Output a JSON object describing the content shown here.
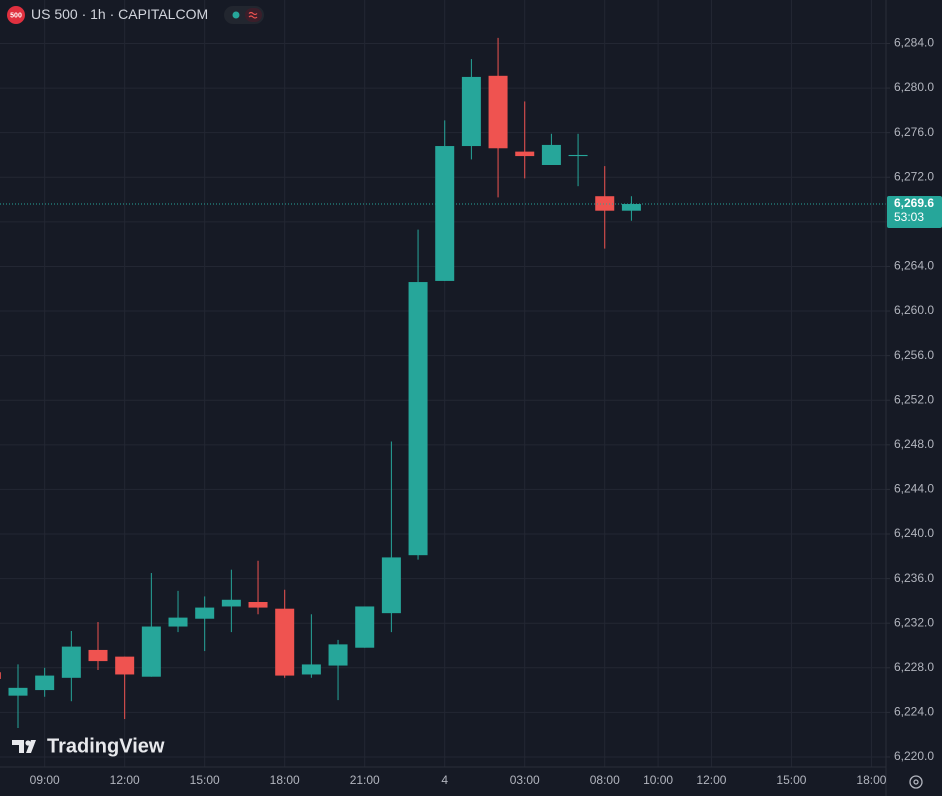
{
  "chart_data": {
    "type": "candlestick",
    "title": "US 500 · 1h · CAPITALCOM",
    "badge": "500",
    "watermark": "TradingView",
    "categories": [
      null,
      null,
      "09:00",
      null,
      null,
      "12:00",
      null,
      null,
      "15:00",
      null,
      null,
      "18:00",
      null,
      null,
      "21:00",
      null,
      null,
      "4",
      null,
      null,
      "03:00",
      null,
      null,
      "08:00",
      null,
      "10:00",
      null,
      "12:00",
      null,
      null,
      "15:00",
      null,
      null,
      "18:00"
    ],
    "open": [
      6227.6,
      6225.5,
      6226.0,
      6227.1,
      6229.6,
      6229.0,
      6227.2,
      6231.7,
      6232.4,
      6233.5,
      6233.9,
      6233.3,
      6227.4,
      6228.2,
      6229.8,
      6232.9,
      6238.1,
      6262.7,
      6274.8,
      6281.1,
      6274.3,
      6273.1,
      6273.9,
      6270.3,
      6269.0,
      null,
      null,
      null,
      null,
      null,
      null,
      null,
      null,
      null
    ],
    "high": [
      6227.8,
      6228.3,
      6228.0,
      6231.3,
      6232.1,
      6229.0,
      6236.5,
      6234.9,
      6234.4,
      6236.8,
      6237.6,
      6235.0,
      6232.8,
      6230.5,
      6233.5,
      6248.3,
      6267.3,
      6277.1,
      6282.6,
      6284.5,
      6278.8,
      6275.9,
      6275.9,
      6273.0,
      6270.3,
      null,
      null,
      null,
      null,
      null,
      null,
      null,
      null,
      null
    ],
    "low": [
      6226.8,
      6222.6,
      6225.4,
      6225.0,
      6227.8,
      6223.4,
      6227.2,
      6231.2,
      6229.5,
      6231.2,
      6232.8,
      6227.1,
      6227.1,
      6225.1,
      6229.8,
      6231.2,
      6237.7,
      6262.7,
      6273.6,
      6270.2,
      6271.9,
      6273.1,
      6271.2,
      6265.6,
      6268.1,
      null,
      null,
      null,
      null,
      null,
      null,
      null,
      null,
      null
    ],
    "close": [
      6227.0,
      6226.2,
      6227.3,
      6229.9,
      6228.6,
      6227.4,
      6231.7,
      6232.5,
      6233.4,
      6234.1,
      6233.4,
      6227.3,
      6228.3,
      6230.1,
      6233.5,
      6237.9,
      6262.6,
      6274.8,
      6281.0,
      6274.6,
      6273.9,
      6274.9,
      6274.0,
      6269.0,
      6269.6,
      null,
      null,
      null,
      null,
      null,
      null,
      null,
      null,
      null
    ],
    "up_color": "#26a69a",
    "down_color": "#ef5350",
    "ylim": [
      6219.1,
      6287.9
    ],
    "yticks": [
      {
        "value": 6220,
        "label": "6,220.0"
      },
      {
        "value": 6224,
        "label": "6,224.0"
      },
      {
        "value": 6228,
        "label": "6,228.0"
      },
      {
        "value": 6232,
        "label": "6,232.0"
      },
      {
        "value": 6236,
        "label": "6,236.0"
      },
      {
        "value": 6240,
        "label": "6,240.0"
      },
      {
        "value": 6244,
        "label": "6,244.0"
      },
      {
        "value": 6248,
        "label": "6,248.0"
      },
      {
        "value": 6252,
        "label": "6,252.0"
      },
      {
        "value": 6256,
        "label": "6,256.0"
      },
      {
        "value": 6260,
        "label": "6,260.0"
      },
      {
        "value": 6264,
        "label": "6,264.0"
      },
      {
        "value": 6268,
        "label": "6,268.0"
      },
      {
        "value": 6272,
        "label": "6,272.0"
      },
      {
        "value": 6276,
        "label": "6,276.0"
      },
      {
        "value": 6280,
        "label": "6,280.0"
      },
      {
        "value": 6284,
        "label": "6,284.0"
      }
    ],
    "grid": true,
    "last_price": {
      "value": 6269.6,
      "label": "6,269.6"
    },
    "countdown": "53:03"
  }
}
